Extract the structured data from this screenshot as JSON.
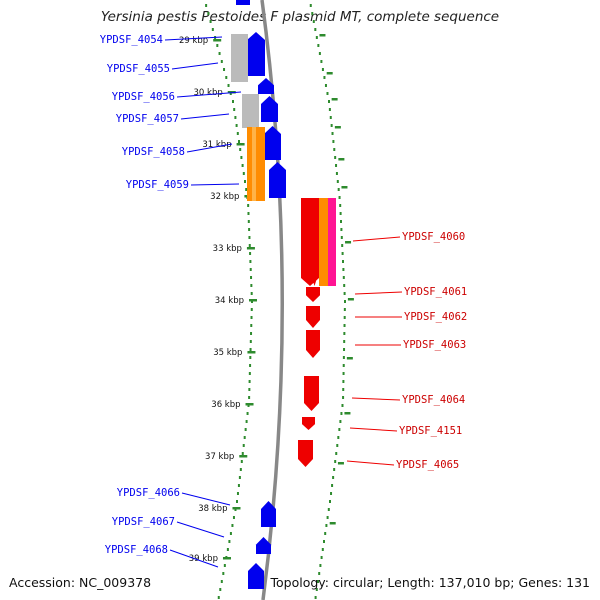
{
  "title": "Yersinia pestis Pestoides F plasmid MT, complete sequence",
  "accession": "Accession: NC_009378",
  "topology": "Topology: circular; Length: 137,010 bp; Genes: 131",
  "colors": {
    "forward": "#0000ee",
    "reverse": "#ee0000",
    "gray": "#bbbbbb",
    "orange": "#ff8c00",
    "magenta": "#ff1493",
    "backbone": "#888888",
    "dots": "#2e8b2e"
  },
  "kbp_ticks": [
    "29 kbp",
    "30 kbp",
    "31 kbp",
    "32 kbp",
    "33 kbp",
    "34 kbp",
    "35 kbp",
    "36 kbp",
    "37 kbp",
    "38 kbp",
    "39 kbp"
  ],
  "genes_left": [
    {
      "name": "YPDSF_4054"
    },
    {
      "name": "YPDSF_4055"
    },
    {
      "name": "YPDSF_4056"
    },
    {
      "name": "YPDSF_4057"
    },
    {
      "name": "YPDSF_4058"
    },
    {
      "name": "YPDSF_4059"
    },
    {
      "name": "YPDSF_4066"
    },
    {
      "name": "YPDSF_4067"
    },
    {
      "name": "YPDSF_4068"
    }
  ],
  "genes_right": [
    {
      "name": "YPDSF_4060"
    },
    {
      "name": "YPDSF_4061"
    },
    {
      "name": "YPDSF_4062"
    },
    {
      "name": "YPDSF_4063"
    },
    {
      "name": "YPDSF_4064"
    },
    {
      "name": "YPDSF_4151"
    },
    {
      "name": "YPDSF_4065"
    }
  ]
}
